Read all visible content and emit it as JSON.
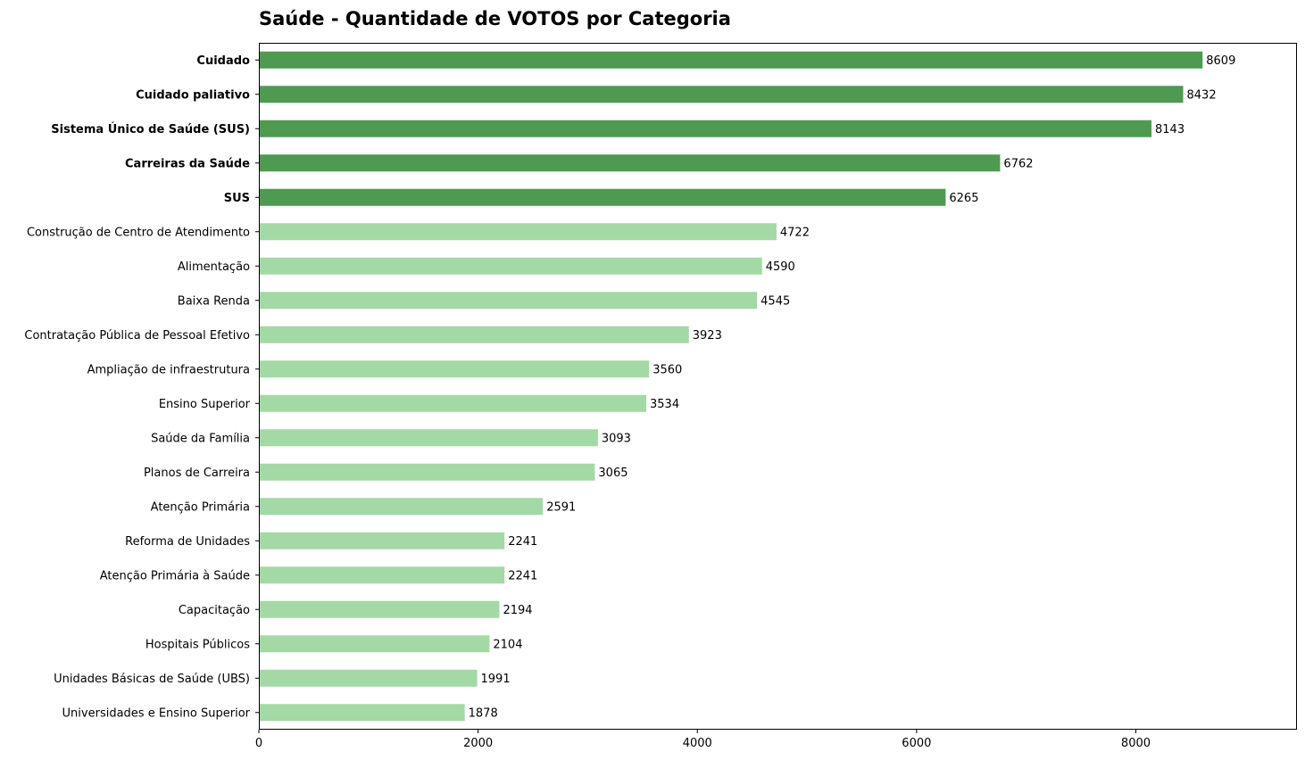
{
  "chart_data": {
    "type": "bar",
    "orientation": "horizontal",
    "title": "Saúde - Quantidade de VOTOS por Categoria",
    "xlabel": "",
    "ylabel": "",
    "xlim": [
      0,
      9470
    ],
    "x_ticks": [
      0,
      2000,
      4000,
      6000,
      8000
    ],
    "grid": false,
    "legend": "none",
    "colors": {
      "highlight": "#4f9a51",
      "normal": "#a3d9a4",
      "text": "#000000",
      "axis": "#000000"
    },
    "categories": [
      "Cuidado",
      "Cuidado paliativo",
      "Sistema Único de Saúde (SUS)",
      "Carreiras da Saúde",
      "SUS",
      "Construção de Centro de Atendimento",
      "Alimentação",
      "Baixa Renda",
      "Contratação Pública de Pessoal Efetivo",
      "Ampliação de infraestrutura",
      "Ensino Superior",
      "Saúde da Família",
      "Planos de Carreira",
      "Atenção Primária",
      "Reforma de Unidades",
      "Atenção Primária à Saúde",
      "Capacitação",
      "Hospitais Públicos",
      "Unidades Básicas de Saúde (UBS)",
      "Universidades e Ensino Superior"
    ],
    "values": [
      8609,
      8432,
      8143,
      6762,
      6265,
      4722,
      4590,
      4545,
      3923,
      3560,
      3534,
      3093,
      3065,
      2591,
      2241,
      2241,
      2194,
      2104,
      1991,
      1878
    ],
    "highlighted": [
      true,
      true,
      true,
      true,
      true,
      false,
      false,
      false,
      false,
      false,
      false,
      false,
      false,
      false,
      false,
      false,
      false,
      false,
      false,
      false
    ],
    "data_labels": [
      "8609",
      "8432",
      "8143",
      "6762",
      "6265",
      "4722",
      "4590",
      "4545",
      "3923",
      "3560",
      "3534",
      "3093",
      "3065",
      "2591",
      "2241",
      "2241",
      "2194",
      "2104",
      "1991",
      "1878"
    ]
  }
}
